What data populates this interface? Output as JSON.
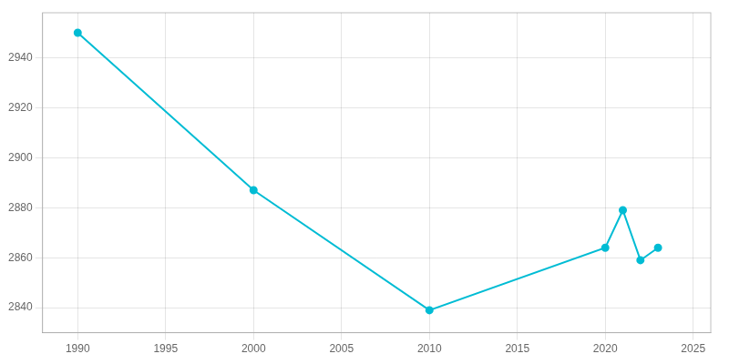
{
  "chart_data": {
    "type": "line",
    "x": [
      1990,
      2000,
      2010,
      2020,
      2021,
      2022,
      2023
    ],
    "values": [
      2950,
      2887,
      2839,
      2864,
      2879,
      2859,
      2864
    ],
    "color": "#00bcd4",
    "marker": "circle",
    "xlim": [
      1988,
      2026
    ],
    "ylim": [
      2830,
      2958
    ],
    "xticks": [
      1990,
      1995,
      2000,
      2005,
      2010,
      2015,
      2020,
      2025
    ],
    "yticks": [
      2840,
      2860,
      2880,
      2900,
      2920,
      2940
    ],
    "grid": true
  }
}
